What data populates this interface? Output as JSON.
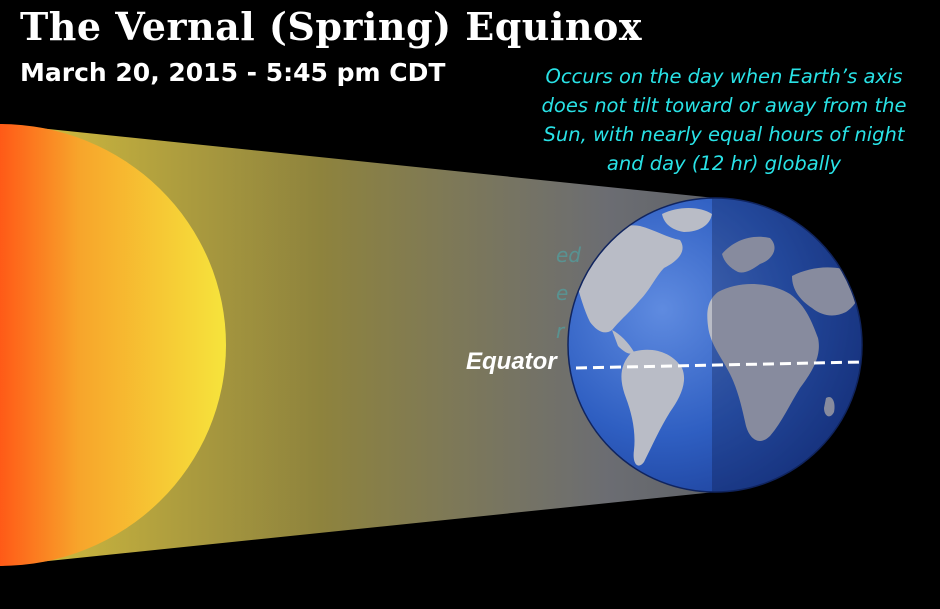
{
  "title": "The Vernal (Spring) Equinox",
  "subtitle": "March 20, 2015 - 5:45 pm CDT",
  "description_lines": [
    "Occurs on the day when Earth’s axis",
    "does not tilt toward or away from the",
    "Sun, with nearly equal hours of night",
    "and day (12 hr) globally"
  ],
  "equator_label": "Equator",
  "colors": {
    "background": "#000000",
    "title_text": "#ffffff",
    "description_text": "#29e2e6",
    "sun_inner": "#f7e33a",
    "sun_outer": "#ff5418",
    "sunlight_beam": "#bfa93a",
    "ocean": "#2a56b6",
    "land": "#b9bcc6",
    "equator_line": "#ffffff"
  },
  "icons": {
    "sun": "sun-half-disc",
    "earth": "earth-globe"
  }
}
